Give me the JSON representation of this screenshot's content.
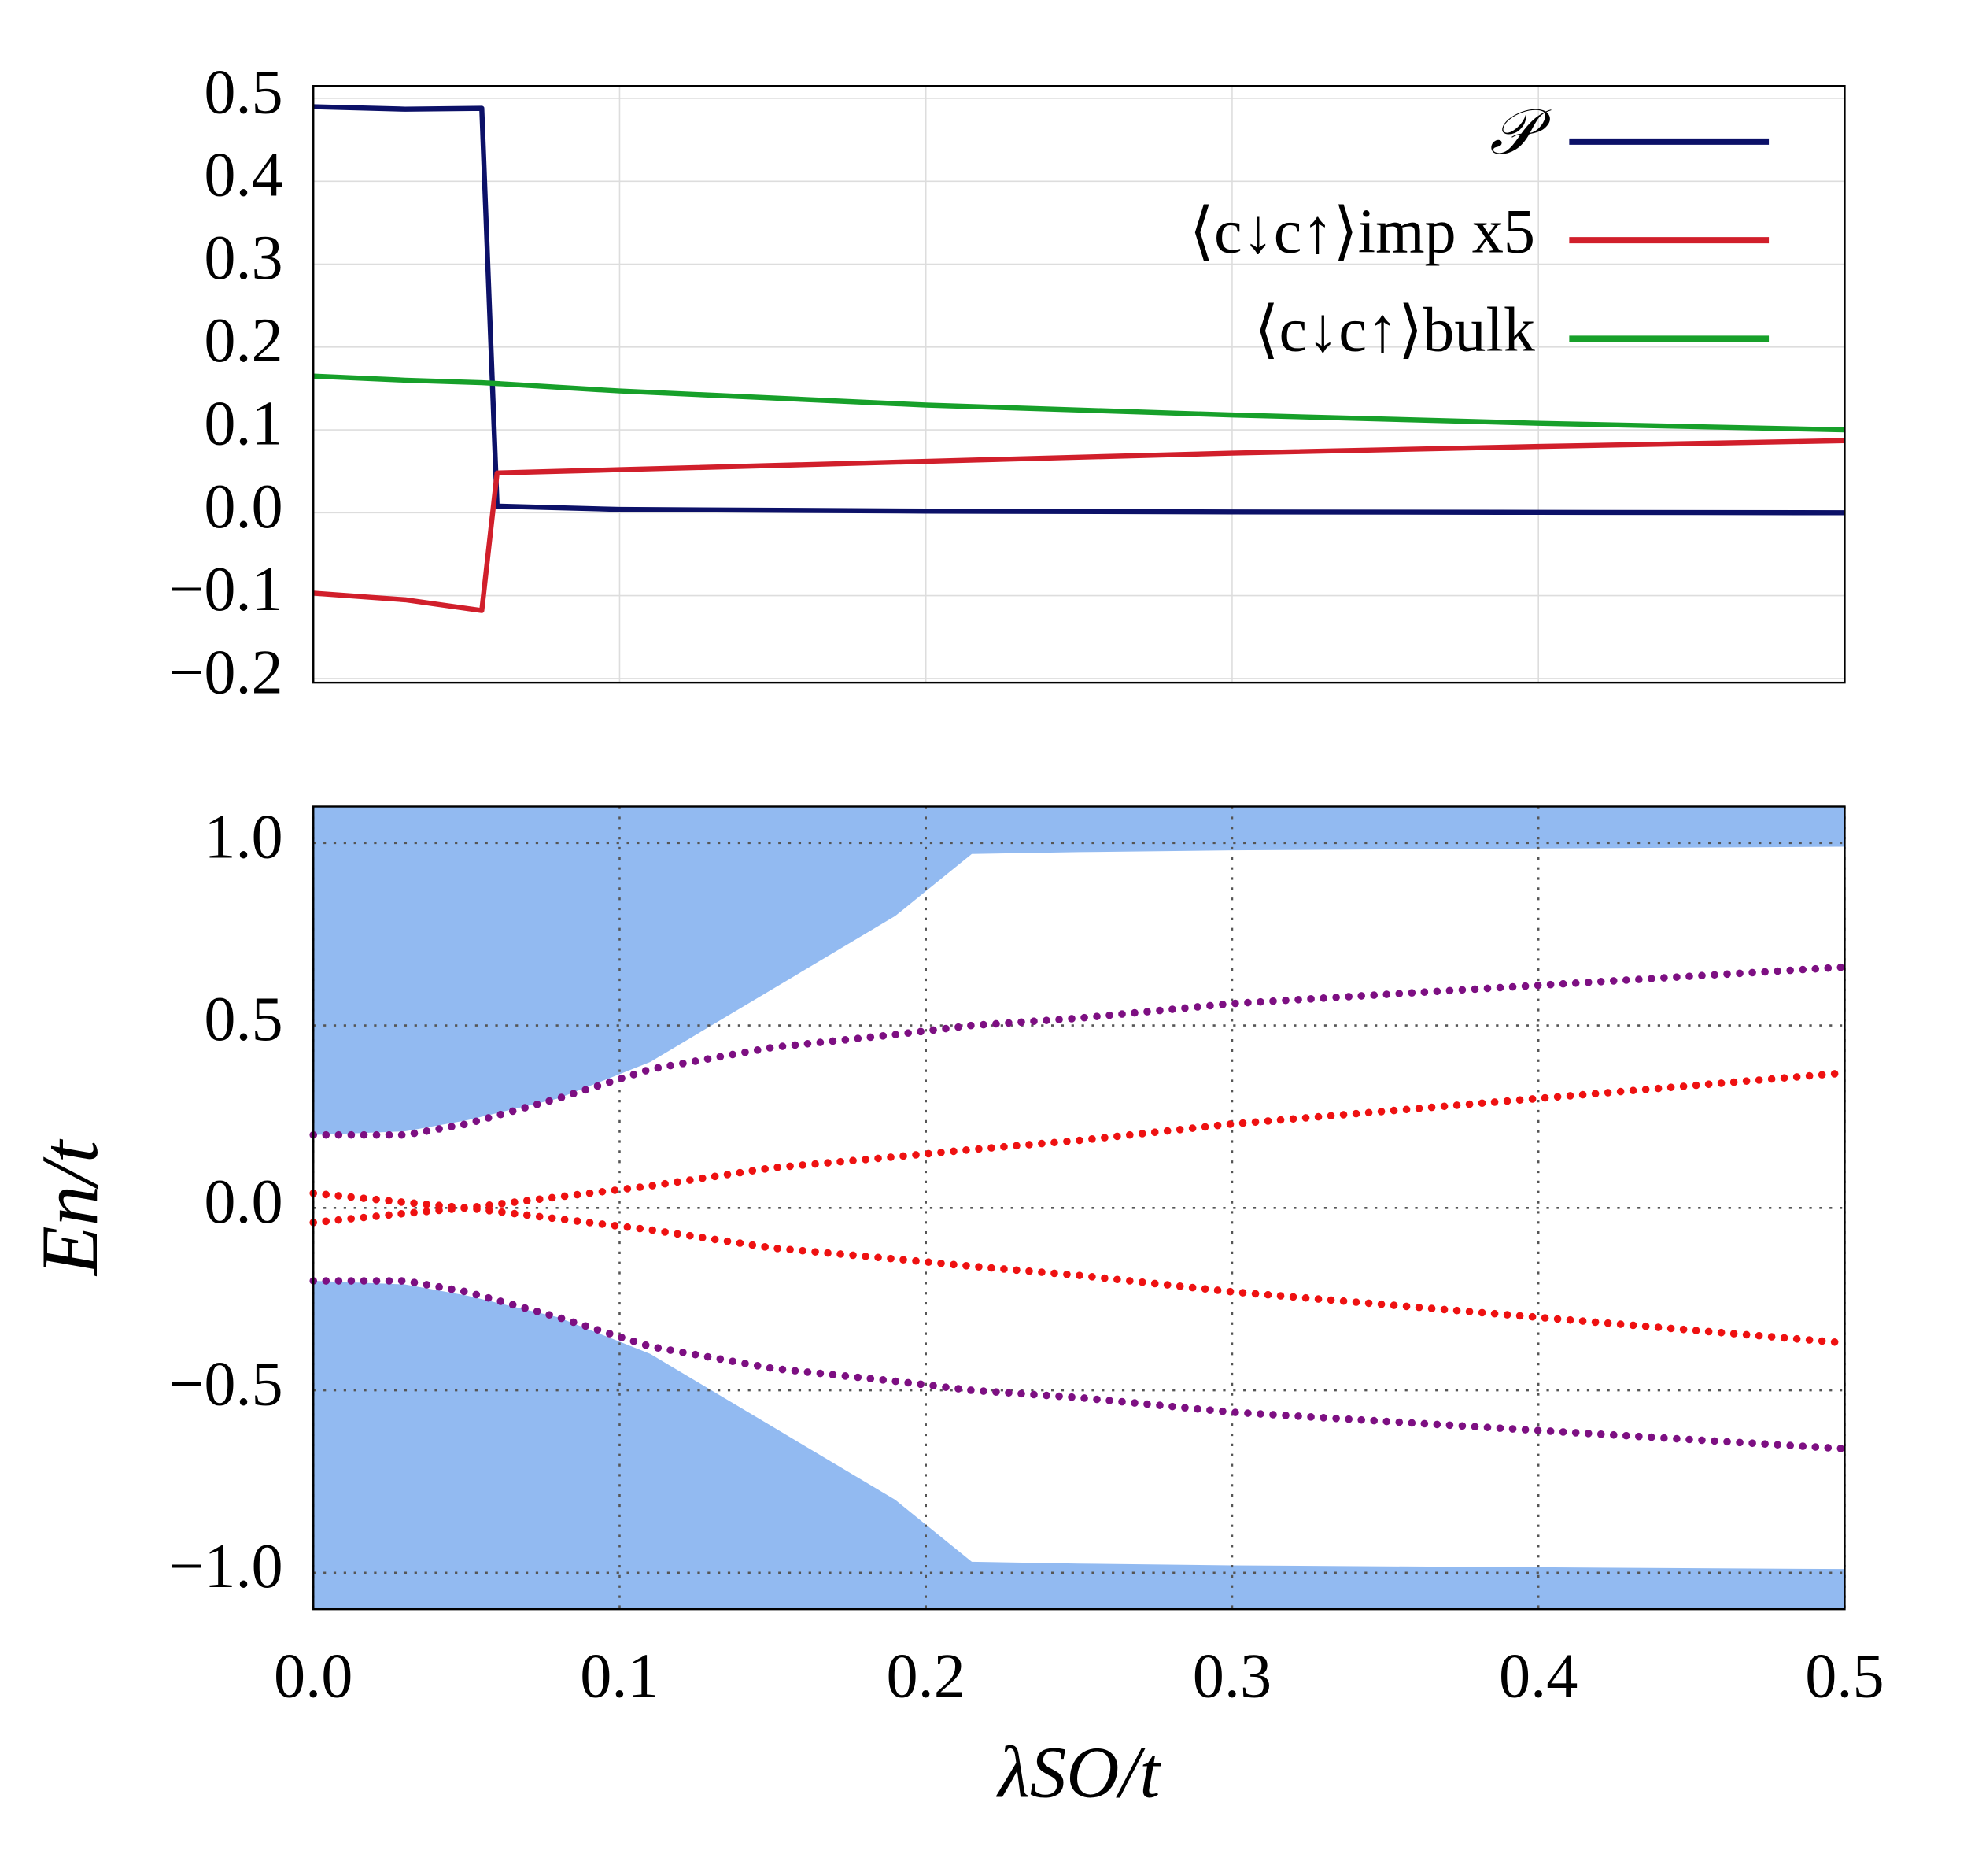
{
  "chart_data": [
    {
      "type": "line",
      "x": [
        0,
        0.03,
        0.055,
        0.06,
        0.1,
        0.2,
        0.3,
        0.4,
        0.5
      ],
      "series": [
        {
          "name": "𝒫",
          "color": "#0c1168",
          "values": [
            0.49,
            0.487,
            0.488,
            0.008,
            0.004,
            0.002,
            0.001,
            0.0005,
            0
          ]
        },
        {
          "name": "⟨c↓c↑⟩imp x5",
          "color": "#d11f2b",
          "values": [
            -0.097,
            -0.105,
            -0.118,
            0.048,
            0.052,
            0.062,
            0.072,
            0.08,
            0.087
          ]
        },
        {
          "name": "⟨c↓c↑⟩bulk",
          "color": "#17a02a",
          "values": [
            0.165,
            0.16,
            0.157,
            0.156,
            0.147,
            0.13,
            0.118,
            0.108,
            0.1
          ]
        }
      ],
      "xlim": [
        0,
        0.5
      ],
      "xticks": [
        0,
        0.1,
        0.2,
        0.3,
        0.4,
        0.5
      ],
      "xtick_labels": false,
      "ylim": [
        -0.205,
        0.515
      ],
      "yticks": [
        {
          "value": -0.2,
          "label": "−0.2"
        },
        {
          "value": -0.1,
          "label": "−0.1"
        },
        {
          "value": 0,
          "label": "0.0"
        },
        0.1,
        0.2,
        0.3,
        0.4,
        0.5
      ],
      "grid": true,
      "legend": "upper right"
    },
    {
      "type": "scatter",
      "x": [
        0,
        0.03,
        0.05,
        0.08,
        0.11,
        0.15,
        0.19,
        0.215,
        0.25,
        0.3,
        0.4,
        0.5
      ],
      "bands": [
        {
          "color": "#86b3f0",
          "lower": [
            0.2,
            0.21,
            0.24,
            0.3,
            0.4,
            0.6,
            0.8,
            0.97,
            0.975,
            0.98,
            0.985,
            0.99
          ],
          "upper": [
            1.1,
            1.1,
            1.1,
            1.1,
            1.1,
            1.1,
            1.1,
            1.1,
            1.1,
            1.1,
            1.1,
            1.1
          ]
        },
        {
          "color": "#86b3f0",
          "lower": [
            -1.1,
            -1.1,
            -1.1,
            -1.1,
            -1.1,
            -1.1,
            -1.1,
            -1.1,
            -1.1,
            -1.1,
            -1.1,
            -1.1
          ],
          "upper": [
            -0.2,
            -0.21,
            -0.24,
            -0.3,
            -0.4,
            -0.6,
            -0.8,
            -0.97,
            -0.975,
            -0.98,
            -0.985,
            -0.99
          ]
        }
      ],
      "series": [
        {
          "color": "#7d0f82",
          "values": [
            0.2,
            0.2,
            0.23,
            0.3,
            0.38,
            0.44,
            0.475,
            0.5,
            0.52,
            0.56,
            0.61,
            0.66
          ]
        },
        {
          "color": "#7d0f82",
          "values": [
            -0.2,
            -0.2,
            -0.23,
            -0.3,
            -0.38,
            -0.44,
            -0.475,
            -0.5,
            -0.52,
            -0.56,
            -0.61,
            -0.66
          ]
        },
        {
          "color": "#ee1111",
          "values": [
            0.04,
            0.015,
            0,
            -0.03,
            -0.06,
            -0.11,
            -0.14,
            -0.16,
            -0.185,
            -0.23,
            -0.3,
            -0.37
          ]
        },
        {
          "color": "#ee1111",
          "values": [
            -0.04,
            -0.015,
            0,
            0.03,
            0.06,
            0.11,
            0.14,
            0.16,
            0.185,
            0.23,
            0.3,
            0.37
          ]
        }
      ],
      "xlim": [
        0,
        0.5
      ],
      "xticks": [
        {
          "value": 0,
          "label": "0.0"
        },
        0.1,
        0.2,
        0.3,
        0.4,
        0.5
      ],
      "ylim": [
        -1.1,
        1.1
      ],
      "yticks": [
        {
          "value": -1,
          "label": "−1.0"
        },
        {
          "value": -0.5,
          "label": "−0.5"
        },
        {
          "value": 0,
          "label": "0.0"
        },
        0.5,
        {
          "value": 1,
          "label": "1.0"
        }
      ],
      "xlabel": "λSO/t",
      "ylabel": "En/t",
      "grid": true
    }
  ]
}
